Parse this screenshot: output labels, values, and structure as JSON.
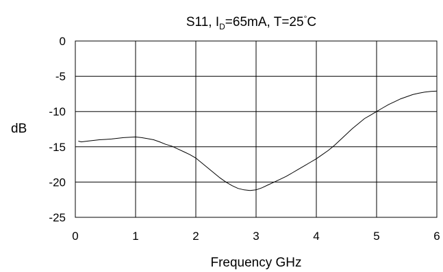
{
  "chart_data": {
    "type": "line",
    "title_main": "S11, I",
    "title_sub": "D",
    "title_rest": "=65mA, T=25",
    "title_deg": "°",
    "title_unit": "C",
    "xlabel": "Frequency GHz",
    "ylabel": "dB",
    "xlim": [
      0,
      6
    ],
    "ylim": [
      -25,
      0
    ],
    "x_ticks": [
      "0",
      "1",
      "2",
      "3",
      "4",
      "5",
      "6"
    ],
    "y_ticks": [
      "0",
      "-5",
      "-10",
      "-15",
      "-20",
      "-25"
    ],
    "grid": true,
    "series": [
      {
        "color": "#000000",
        "x": [
          0.05,
          0.1,
          0.2,
          0.3,
          0.4,
          0.5,
          0.6,
          0.7,
          0.8,
          0.9,
          1.0,
          1.1,
          1.2,
          1.3,
          1.4,
          1.5,
          1.6,
          1.7,
          1.8,
          1.9,
          2.0,
          2.1,
          2.2,
          2.3,
          2.4,
          2.5,
          2.6,
          2.7,
          2.8,
          2.9,
          3.0,
          3.1,
          3.2,
          3.3,
          3.4,
          3.5,
          3.6,
          3.7,
          3.8,
          3.9,
          4.0,
          4.1,
          4.2,
          4.3,
          4.4,
          4.5,
          4.6,
          4.7,
          4.8,
          4.9,
          5.0,
          5.1,
          5.2,
          5.3,
          5.4,
          5.5,
          5.6,
          5.7,
          5.8,
          5.9,
          6.0
        ],
        "y": [
          -14.2,
          -14.3,
          -14.2,
          -14.1,
          -14.0,
          -13.95,
          -13.9,
          -13.8,
          -13.7,
          -13.65,
          -13.6,
          -13.7,
          -13.85,
          -14.0,
          -14.3,
          -14.65,
          -14.9,
          -15.3,
          -15.7,
          -16.1,
          -16.6,
          -17.3,
          -18.0,
          -18.7,
          -19.4,
          -20.0,
          -20.5,
          -20.9,
          -21.1,
          -21.2,
          -21.1,
          -20.8,
          -20.4,
          -20.0,
          -19.6,
          -19.2,
          -18.7,
          -18.2,
          -17.7,
          -17.2,
          -16.7,
          -16.1,
          -15.5,
          -14.8,
          -14.0,
          -13.2,
          -12.4,
          -11.7,
          -11.0,
          -10.5,
          -10.0,
          -9.5,
          -9.0,
          -8.6,
          -8.2,
          -7.9,
          -7.6,
          -7.4,
          -7.25,
          -7.15,
          -7.1
        ]
      }
    ]
  }
}
